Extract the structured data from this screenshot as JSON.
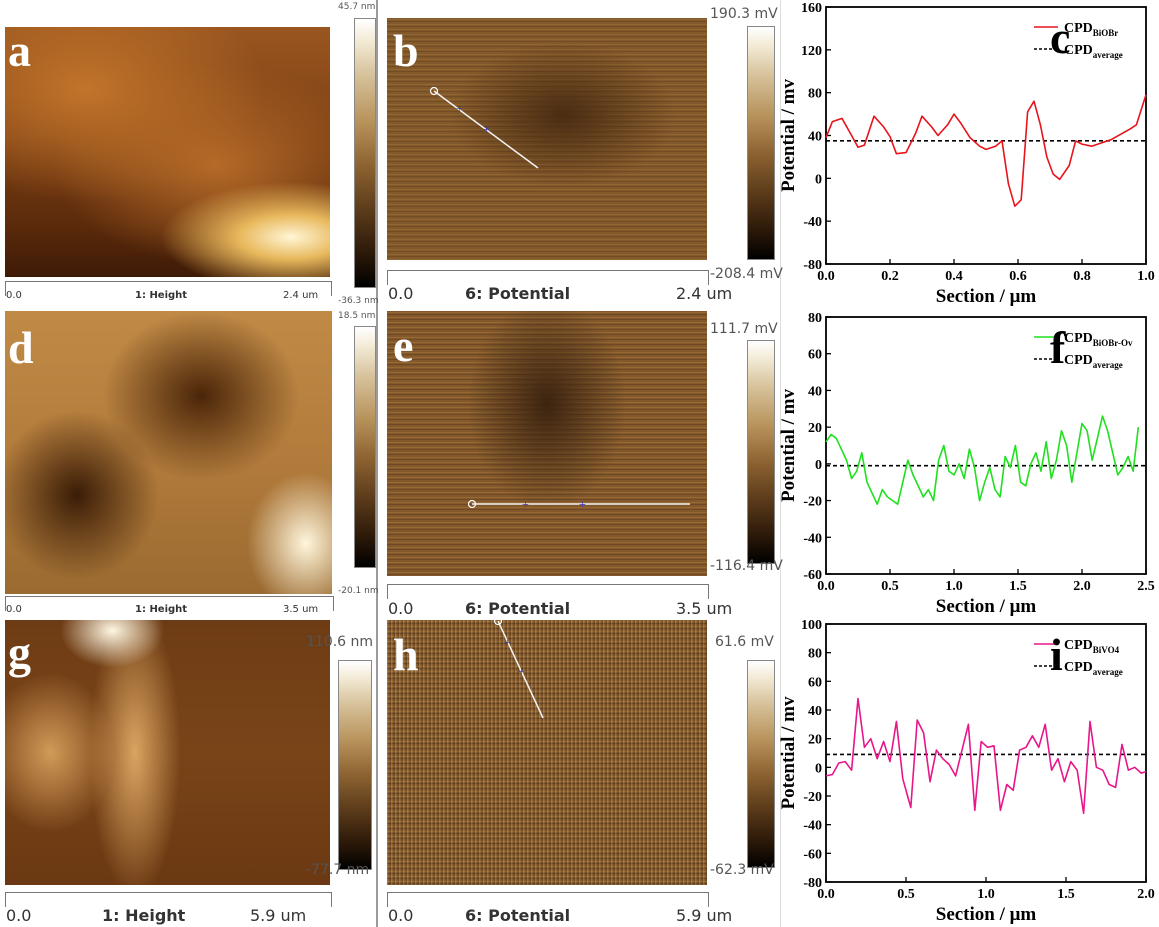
{
  "afm_panels": [
    {
      "id": "a",
      "letter": "a",
      "channel": "1: Height",
      "scale_start": "0.0",
      "scale_end": "2.4 um",
      "cbar_top": "45.7 nm",
      "cbar_bottom": "-36.3 nm",
      "type": "height"
    },
    {
      "id": "b",
      "letter": "b",
      "channel": "6: Potential",
      "scale_start": "0.0",
      "scale_end": "2.4 um",
      "cbar_top": "190.3 mV",
      "cbar_bottom": "-208.4 mV",
      "type": "potential"
    },
    {
      "id": "d",
      "letter": "d",
      "channel": "1: Height",
      "scale_start": "0.0",
      "scale_end": "3.5 um",
      "cbar_top": "18.5 nm",
      "cbar_bottom": "-20.1 nm",
      "type": "height"
    },
    {
      "id": "e",
      "letter": "e",
      "channel": "6: Potential",
      "scale_start": "0.0",
      "scale_end": "3.5 um",
      "cbar_top": "111.7 mV",
      "cbar_bottom": "-116.4 mV",
      "type": "potential"
    },
    {
      "id": "g",
      "letter": "g",
      "channel": "1: Height",
      "scale_start": "0.0",
      "scale_end": "5.9 um",
      "cbar_top": "110.6 nm",
      "cbar_bottom": "-77.7 nm",
      "type": "height"
    },
    {
      "id": "h",
      "letter": "h",
      "channel": "6: Potential",
      "scale_start": "0.0",
      "scale_end": "5.9 um",
      "cbar_top": "61.6 mV",
      "cbar_bottom": "-62.3 mV",
      "type": "potential"
    }
  ],
  "chart_data": [
    {
      "letter": "c",
      "type": "line",
      "xlabel": "Section / μm",
      "ylabel": "Potential / mv",
      "xlim": [
        0,
        1.0
      ],
      "ylim": [
        -80,
        160
      ],
      "xticks": [
        "0.0",
        "0.2",
        "0.4",
        "0.6",
        "0.8",
        "1.0"
      ],
      "xtick_values": [
        0,
        0.2,
        0.4,
        0.6,
        0.8,
        1.0
      ],
      "yticks": [
        "-80",
        "-40",
        "0",
        "40",
        "80",
        "120",
        "160"
      ],
      "ytick_values": [
        -80,
        -40,
        0,
        40,
        80,
        120,
        160
      ],
      "legend_position": "top-right",
      "series": [
        {
          "name": "CPD",
          "sub": "BiOBr",
          "color": "#e8141b",
          "x": [
            0,
            0.02,
            0.05,
            0.08,
            0.1,
            0.12,
            0.15,
            0.18,
            0.2,
            0.22,
            0.25,
            0.28,
            0.3,
            0.33,
            0.35,
            0.38,
            0.4,
            0.42,
            0.45,
            0.48,
            0.5,
            0.53,
            0.55,
            0.57,
            0.59,
            0.61,
            0.63,
            0.65,
            0.67,
            0.69,
            0.71,
            0.73,
            0.76,
            0.78,
            0.8,
            0.83,
            0.86,
            0.89,
            0.92,
            0.95,
            0.97,
            1.0
          ],
          "y": [
            38,
            53,
            56,
            40,
            29,
            31,
            58,
            48,
            39,
            23,
            24,
            42,
            58,
            48,
            40,
            50,
            60,
            52,
            38,
            30,
            27,
            30,
            35,
            -5,
            -26,
            -20,
            62,
            72,
            50,
            20,
            4,
            -1,
            12,
            35,
            32,
            30,
            33,
            36,
            41,
            46,
            50,
            78
          ]
        }
      ],
      "reference": {
        "name": "CPD",
        "sub": "average",
        "value": 35
      }
    },
    {
      "letter": "f",
      "type": "line",
      "xlabel": "Section / μm",
      "ylabel": "Potential / mv",
      "xlim": [
        0,
        2.5
      ],
      "ylim": [
        -60,
        80
      ],
      "xticks": [
        "0.0",
        "0.5",
        "1.0",
        "1.5",
        "2.0",
        "2.5"
      ],
      "xtick_values": [
        0,
        0.5,
        1.0,
        1.5,
        2.0,
        2.5
      ],
      "yticks": [
        "-60",
        "-40",
        "-20",
        "0",
        "20",
        "40",
        "60",
        "80"
      ],
      "ytick_values": [
        -60,
        -40,
        -20,
        0,
        20,
        40,
        60,
        80
      ],
      "legend_position": "top-right",
      "series": [
        {
          "name": "CPD",
          "sub": "BiOBr-Ov",
          "color": "#1fe01f",
          "x": [
            0,
            0.04,
            0.08,
            0.12,
            0.16,
            0.2,
            0.24,
            0.28,
            0.32,
            0.36,
            0.4,
            0.44,
            0.48,
            0.52,
            0.56,
            0.6,
            0.64,
            0.68,
            0.72,
            0.76,
            0.8,
            0.84,
            0.88,
            0.92,
            0.96,
            1.0,
            1.04,
            1.08,
            1.12,
            1.16,
            1.2,
            1.24,
            1.28,
            1.32,
            1.36,
            1.4,
            1.44,
            1.48,
            1.52,
            1.56,
            1.6,
            1.64,
            1.68,
            1.72,
            1.76,
            1.8,
            1.84,
            1.88,
            1.92,
            1.96,
            2.0,
            2.04,
            2.08,
            2.12,
            2.16,
            2.2,
            2.24,
            2.28,
            2.32,
            2.36,
            2.4,
            2.44
          ],
          "y": [
            12,
            16,
            14,
            8,
            2,
            -8,
            -4,
            6,
            -10,
            -16,
            -22,
            -14,
            -18,
            -20,
            -22,
            -10,
            2,
            -6,
            -12,
            -18,
            -14,
            -20,
            2,
            10,
            -4,
            -6,
            0,
            -8,
            8,
            -2,
            -20,
            -10,
            -2,
            -14,
            -18,
            4,
            -2,
            10,
            -10,
            -12,
            0,
            6,
            -4,
            12,
            -8,
            2,
            18,
            10,
            -10,
            6,
            22,
            18,
            2,
            14,
            26,
            18,
            6,
            -6,
            -2,
            4,
            -4,
            20
          ]
        }
      ],
      "reference": {
        "name": "CPD",
        "sub": "average",
        "value": -1
      }
    },
    {
      "letter": "i",
      "type": "line",
      "xlabel": "Section / μm",
      "ylabel": "Potential / mv",
      "xlim": [
        0,
        2.0
      ],
      "ylim": [
        -80,
        100
      ],
      "xticks": [
        "0.0",
        "0.5",
        "1.0",
        "1.5",
        "2.0"
      ],
      "xtick_values": [
        0,
        0.5,
        1.0,
        1.5,
        2.0
      ],
      "yticks": [
        "-80",
        "-60",
        "-40",
        "-20",
        "0",
        "20",
        "40",
        "60",
        "80",
        "100"
      ],
      "ytick_values": [
        -80,
        -60,
        -40,
        -20,
        0,
        20,
        40,
        60,
        80,
        100
      ],
      "legend_position": "top-right",
      "series": [
        {
          "name": "CPD",
          "sub": "BiVO4",
          "color": "#e8168a",
          "x": [
            0,
            0.04,
            0.08,
            0.12,
            0.16,
            0.2,
            0.24,
            0.28,
            0.32,
            0.36,
            0.4,
            0.44,
            0.48,
            0.53,
            0.57,
            0.61,
            0.65,
            0.69,
            0.73,
            0.77,
            0.81,
            0.85,
            0.89,
            0.93,
            0.97,
            1.01,
            1.05,
            1.09,
            1.13,
            1.17,
            1.21,
            1.25,
            1.29,
            1.33,
            1.37,
            1.41,
            1.45,
            1.49,
            1.53,
            1.57,
            1.61,
            1.65,
            1.69,
            1.73,
            1.77,
            1.81,
            1.85,
            1.89,
            1.93,
            1.97,
            2.0
          ],
          "y": [
            -6,
            -5,
            3,
            4,
            -2,
            48,
            14,
            20,
            6,
            18,
            4,
            32,
            -8,
            -28,
            33,
            24,
            -10,
            12,
            6,
            2,
            -6,
            12,
            30,
            -30,
            18,
            14,
            15,
            -30,
            -12,
            -16,
            12,
            14,
            22,
            14,
            30,
            -2,
            6,
            -10,
            4,
            -2,
            -32,
            32,
            0,
            -2,
            -12,
            -14,
            16,
            -2,
            0,
            -4,
            -3
          ]
        }
      ],
      "reference": {
        "name": "CPD",
        "sub": "average",
        "value": 9
      }
    }
  ]
}
